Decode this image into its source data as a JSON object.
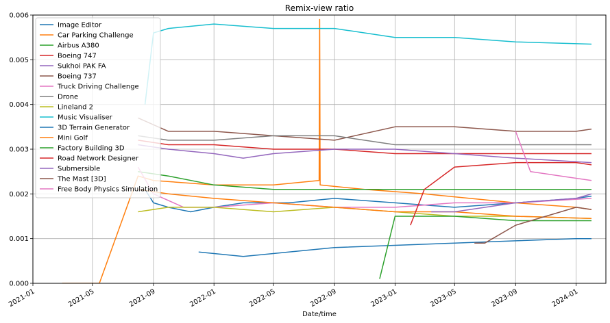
{
  "chart_data": {
    "type": "line",
    "title": "Remix-view ratio",
    "xlabel": "Date/time",
    "ylabel": "",
    "xlim": [
      "2021-01-01",
      "2024-03-01"
    ],
    "ylim": [
      0,
      0.006
    ],
    "x_ticks": [
      "2021-01",
      "2021-05",
      "2021-09",
      "2022-01",
      "2022-05",
      "2022-09",
      "2023-01",
      "2023-05",
      "2023-09",
      "2024-01"
    ],
    "y_ticks": [
      "0.000",
      "0.001",
      "0.002",
      "0.003",
      "0.004",
      "0.005",
      "0.006"
    ],
    "grid": true,
    "legend_position": "top-left",
    "series": [
      {
        "name": "Image Editor",
        "color": "#1f77b4",
        "points": [
          [
            "2021-08-15",
            0.0021
          ],
          [
            "2021-09-01",
            0.0018
          ],
          [
            "2021-10-01",
            0.0017
          ],
          [
            "2021-11-15",
            0.0016
          ],
          [
            "2022-01-01",
            0.0017
          ],
          [
            "2022-03-01",
            0.0018
          ],
          [
            "2022-06-01",
            0.0018
          ],
          [
            "2022-09-01",
            0.0019
          ],
          [
            "2023-01-01",
            0.0018
          ],
          [
            "2023-05-01",
            0.0017
          ],
          [
            "2023-09-01",
            0.0018
          ],
          [
            "2024-01-01",
            0.0019
          ],
          [
            "2024-02-01",
            0.00195
          ]
        ]
      },
      {
        "name": "Car Parking Challenge",
        "color": "#ff7f0e",
        "points": [
          [
            "2021-03-01",
            0
          ],
          [
            "2021-05-15",
            0
          ],
          [
            "2021-08-01",
            0.0024
          ],
          [
            "2021-09-01",
            0.0023
          ],
          [
            "2022-01-01",
            0.0022
          ],
          [
            "2022-05-01",
            0.0022
          ],
          [
            "2022-08-01",
            0.0023
          ],
          [
            "2022-08-02",
            0.0059
          ],
          [
            "2022-08-03",
            0.0022
          ],
          [
            "2022-11-01",
            0.0021
          ],
          [
            "2023-03-01",
            0.002
          ],
          [
            "2023-06-01",
            0.0019
          ],
          [
            "2023-09-01",
            0.0018
          ],
          [
            "2024-01-01",
            0.0017
          ],
          [
            "2024-02-01",
            0.00165
          ]
        ]
      },
      {
        "name": "Airbus A380",
        "color": "#2ca02c",
        "points": [
          [
            "2021-08-01",
            0.0025
          ],
          [
            "2021-10-01",
            0.0024
          ],
          [
            "2022-01-01",
            0.0022
          ],
          [
            "2022-05-01",
            0.0021
          ],
          [
            "2022-09-01",
            0.0021
          ],
          [
            "2023-01-01",
            0.0021
          ],
          [
            "2023-05-01",
            0.0021
          ],
          [
            "2023-09-01",
            0.0021
          ],
          [
            "2024-02-01",
            0.0021
          ]
        ]
      },
      {
        "name": "Boeing 747",
        "color": "#d62728",
        "points": [
          [
            "2021-08-01",
            0.0032
          ],
          [
            "2021-10-01",
            0.0031
          ],
          [
            "2022-01-01",
            0.0031
          ],
          [
            "2022-05-01",
            0.003
          ],
          [
            "2022-09-01",
            0.003
          ],
          [
            "2023-01-01",
            0.0029
          ],
          [
            "2023-05-01",
            0.0029
          ],
          [
            "2023-09-01",
            0.0029
          ],
          [
            "2024-02-01",
            0.0029
          ]
        ]
      },
      {
        "name": "Sukhoi PAK FA",
        "color": "#9467bd",
        "points": [
          [
            "2021-08-01",
            0.0031
          ],
          [
            "2021-10-01",
            0.003
          ],
          [
            "2022-01-01",
            0.0029
          ],
          [
            "2022-03-01",
            0.0028
          ],
          [
            "2022-05-01",
            0.0029
          ],
          [
            "2022-09-01",
            0.003
          ],
          [
            "2023-01-01",
            0.003
          ],
          [
            "2023-05-01",
            0.0029
          ],
          [
            "2023-09-01",
            0.0028
          ],
          [
            "2024-02-01",
            0.0027
          ]
        ]
      },
      {
        "name": "Boeing 737",
        "color": "#8c564b",
        "points": [
          [
            "2021-08-01",
            0.0037
          ],
          [
            "2021-10-01",
            0.0034
          ],
          [
            "2022-01-01",
            0.0034
          ],
          [
            "2022-05-01",
            0.0033
          ],
          [
            "2022-09-01",
            0.0032
          ],
          [
            "2023-01-01",
            0.0035
          ],
          [
            "2023-05-01",
            0.0035
          ],
          [
            "2023-09-01",
            0.0034
          ],
          [
            "2024-01-01",
            0.0034
          ],
          [
            "2024-02-01",
            0.00345
          ]
        ]
      },
      {
        "name": "Truck Driving Challenge",
        "color": "#e377c2",
        "points": [
          [
            "2021-08-01",
            0.0026
          ],
          [
            "2021-09-01",
            0.002
          ],
          [
            "2021-11-01",
            0.0017
          ],
          [
            "2022-01-01",
            0.0017
          ],
          [
            "2022-05-01",
            0.0018
          ],
          [
            "2022-09-01",
            0.0017
          ],
          [
            "2023-01-01",
            0.0017
          ],
          [
            "2023-05-01",
            0.0018
          ],
          [
            "2023-09-01",
            0.0018
          ],
          [
            "2024-02-01",
            0.0019
          ]
        ]
      },
      {
        "name": "Drone",
        "color": "#7f7f7f",
        "points": [
          [
            "2021-08-01",
            0.0033
          ],
          [
            "2021-10-01",
            0.0032
          ],
          [
            "2022-01-01",
            0.0032
          ],
          [
            "2022-05-01",
            0.0033
          ],
          [
            "2022-09-01",
            0.0033
          ],
          [
            "2023-01-01",
            0.0031
          ],
          [
            "2023-05-01",
            0.0031
          ],
          [
            "2023-09-01",
            0.0031
          ],
          [
            "2024-02-01",
            0.0031
          ]
        ]
      },
      {
        "name": "Lineland 2",
        "color": "#bcbd22",
        "points": [
          [
            "2021-08-01",
            0.0016
          ],
          [
            "2021-10-01",
            0.0017
          ],
          [
            "2022-01-01",
            0.0017
          ],
          [
            "2022-05-01",
            0.0016
          ],
          [
            "2022-09-01",
            0.0017
          ],
          [
            "2023-01-01",
            0.0016
          ],
          [
            "2023-05-01",
            0.0015
          ],
          [
            "2023-09-01",
            0.0015
          ],
          [
            "2024-02-01",
            0.00145
          ]
        ]
      },
      {
        "name": "Music Visualiser",
        "color": "#17becf",
        "points": [
          [
            "2021-08-15",
            0.004
          ],
          [
            "2021-09-01",
            0.0056
          ],
          [
            "2021-10-01",
            0.0057
          ],
          [
            "2022-01-01",
            0.0058
          ],
          [
            "2022-05-01",
            0.0057
          ],
          [
            "2022-09-01",
            0.0057
          ],
          [
            "2023-01-01",
            0.0055
          ],
          [
            "2023-05-01",
            0.0055
          ],
          [
            "2023-09-01",
            0.0054
          ],
          [
            "2024-02-01",
            0.00535
          ]
        ]
      },
      {
        "name": "3D Terrain Generator",
        "color": "#1f77b4",
        "points": [
          [
            "2021-12-01",
            0.0007
          ],
          [
            "2022-03-01",
            0.0006
          ],
          [
            "2022-06-01",
            0.0007
          ],
          [
            "2022-09-01",
            0.0008
          ],
          [
            "2023-01-01",
            0.00085
          ],
          [
            "2023-05-01",
            0.0009
          ],
          [
            "2023-09-01",
            0.00095
          ],
          [
            "2024-01-01",
            0.001
          ],
          [
            "2024-02-01",
            0.001
          ]
        ]
      },
      {
        "name": "Mini Golf",
        "color": "#ff7f0e",
        "points": [
          [
            "2021-08-01",
            0.0021
          ],
          [
            "2021-10-01",
            0.002
          ],
          [
            "2022-01-01",
            0.0019
          ],
          [
            "2022-05-01",
            0.0018
          ],
          [
            "2022-09-01",
            0.0017
          ],
          [
            "2023-01-01",
            0.0016
          ],
          [
            "2023-05-01",
            0.0016
          ],
          [
            "2023-09-01",
            0.0015
          ],
          [
            "2024-02-01",
            0.00145
          ]
        ]
      },
      {
        "name": "Factory Building 3D",
        "color": "#2ca02c",
        "points": [
          [
            "2022-12-01",
            0.0001
          ],
          [
            "2023-01-01",
            0.0015
          ],
          [
            "2023-05-01",
            0.0015
          ],
          [
            "2023-09-01",
            0.0014
          ],
          [
            "2024-02-01",
            0.0014
          ]
        ]
      },
      {
        "name": "Road Network Designer",
        "color": "#d62728",
        "points": [
          [
            "2023-02-01",
            0.0013
          ],
          [
            "2023-03-01",
            0.0021
          ],
          [
            "2023-05-01",
            0.0026
          ],
          [
            "2023-09-01",
            0.0027
          ],
          [
            "2024-01-01",
            0.0027
          ],
          [
            "2024-02-01",
            0.00265
          ]
        ]
      },
      {
        "name": "Submersible",
        "color": "#9467bd",
        "points": [
          [
            "2023-03-15",
            0.0016
          ],
          [
            "2023-05-01",
            0.0016
          ],
          [
            "2023-09-01",
            0.0018
          ],
          [
            "2024-01-01",
            0.0019
          ],
          [
            "2024-02-01",
            0.002
          ]
        ]
      },
      {
        "name": "The Mast [3D]",
        "color": "#8c564b",
        "points": [
          [
            "2023-06-10",
            0.0009
          ],
          [
            "2023-07-01",
            0.0009
          ],
          [
            "2023-09-01",
            0.0013
          ],
          [
            "2023-11-01",
            0.0015
          ],
          [
            "2024-01-01",
            0.0017
          ],
          [
            "2024-02-01",
            0.00165
          ]
        ]
      },
      {
        "name": "Free Body Physics Simulation",
        "color": "#e377c2",
        "points": [
          [
            "2023-09-01",
            0.0034
          ],
          [
            "2023-10-01",
            0.0025
          ],
          [
            "2023-12-01",
            0.0024
          ],
          [
            "2024-02-01",
            0.0023
          ]
        ]
      }
    ]
  }
}
